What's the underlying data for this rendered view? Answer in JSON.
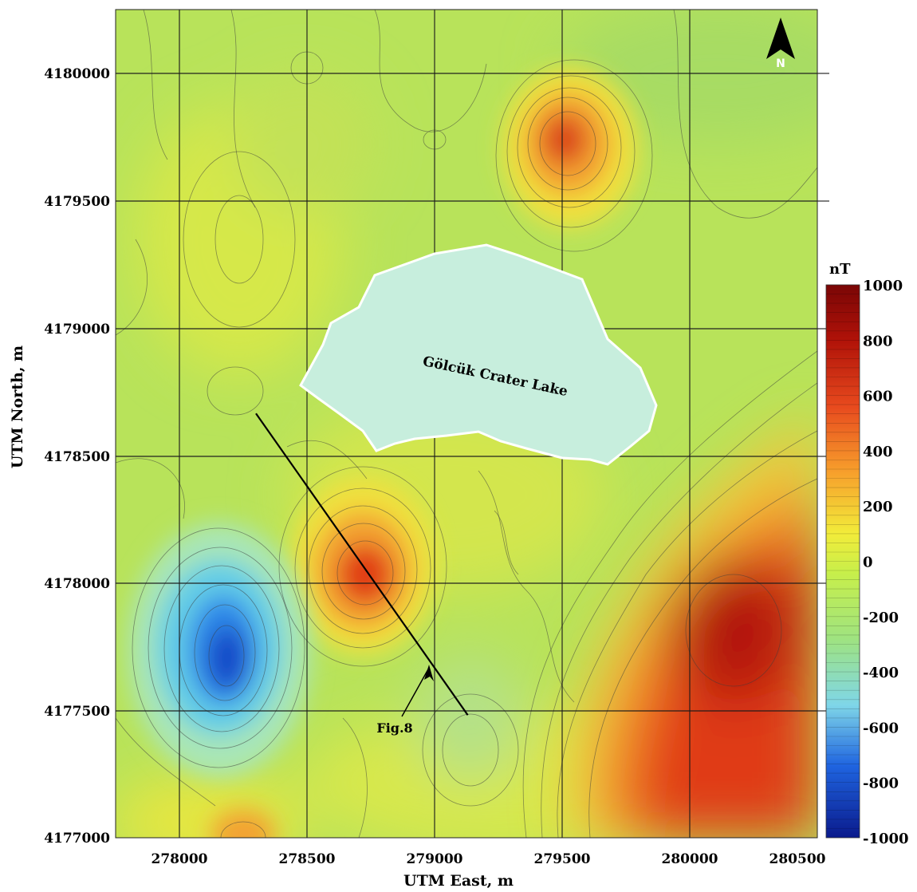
{
  "map": {
    "unit_label": "nT",
    "x_axis_title": "UTM East, m",
    "y_axis_title": "UTM North, m",
    "x_ticks": [
      "278000",
      "278500",
      "279000",
      "279500",
      "280000",
      "280500"
    ],
    "y_ticks": [
      "4180000",
      "4179500",
      "4179000",
      "4178500",
      "4178000",
      "4177500",
      "4177000"
    ],
    "x_range": [
      277750,
      280500
    ],
    "y_range": [
      4177000,
      4180240
    ],
    "north_label": "N",
    "lake_label": "Gölcük Crater Lake",
    "profile_label": "Fig.8",
    "profile_line": {
      "start": [
        278300,
        4178660
      ],
      "end": [
        279130,
        4177480
      ]
    },
    "anomalies": [
      {
        "type": "high",
        "easting": 279500,
        "northing": 4179740,
        "value": 750
      },
      {
        "type": "high",
        "easting": 278760,
        "northing": 4178030,
        "value": 780
      },
      {
        "type": "high",
        "easting": 280050,
        "northing": 4177700,
        "value": 950
      },
      {
        "type": "low",
        "easting": 278220,
        "northing": 4177700,
        "value": -900
      }
    ]
  },
  "colorbar": {
    "ticks": [
      "1000",
      "800",
      "600",
      "400",
      "200",
      "0",
      "-200",
      "-400",
      "-600",
      "-800",
      "-1000"
    ],
    "min": -1000,
    "max": 1000,
    "colors": [
      "#0a1a8c",
      "#1f64e0",
      "#7fd6e8",
      "#bfeec0",
      "#c8ef4a",
      "#f2ec3a",
      "#f7a02c",
      "#e84a1e",
      "#b01208",
      "#7a0606"
    ]
  }
}
